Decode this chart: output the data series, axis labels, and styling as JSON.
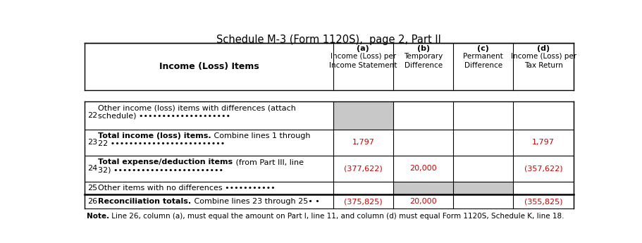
{
  "title": "Schedule M-3 (Form 1120S),  page 2, Part II",
  "title_fontsize": 10.5,
  "bg_color": "#ffffff",
  "border_color": "#000000",
  "gray_fill": "#c8c8c8",
  "red_color": "#cc0000",
  "black_color": "#000000",
  "col_header_labels": [
    "(a)",
    "(b)",
    "(c)",
    "(d)"
  ],
  "col_header_sub": [
    "Income (Loss) per\nIncome Statement",
    "Temporary\nDifference",
    "Permanent\nDifference",
    "Income (Loss) per\nTax Return"
  ],
  "row_header": "Income (Loss) Items",
  "rows": [
    {
      "num": "22",
      "label_bold": "",
      "label_normal": "Other income (loss) items with differences (attach\nschedule) ••••••••••••••••••••",
      "values": [
        "",
        "",
        "",
        ""
      ],
      "gray_cols": [
        0
      ],
      "two_line": true
    },
    {
      "num": "23",
      "label_bold": "Total income (loss) items.",
      "label_normal": " Combine lines 1 through\n22 •••••••••••••••••••••••••",
      "values": [
        "1,797",
        "",
        "",
        "1,797"
      ],
      "gray_cols": [],
      "two_line": true
    },
    {
      "num": "24",
      "label_bold": "Total expense/deduction items",
      "label_normal": " (from Part III, line\n32) ••••••••••••••••••••••••",
      "values": [
        "(377,622)",
        "20,000",
        "",
        "(357,622)"
      ],
      "gray_cols": [],
      "two_line": true
    },
    {
      "num": "25",
      "label_bold": "",
      "label_normal": "Other items with no differences •••••••••••",
      "values": [
        "",
        "",
        "",
        ""
      ],
      "gray_cols": [
        1,
        2
      ],
      "two_line": false
    },
    {
      "num": "26",
      "label_bold": "Reconciliation totals.",
      "label_normal": " Combine lines 23 through 25• •",
      "values": [
        "(375,825)",
        "20,000",
        "",
        "(355,825)"
      ],
      "gray_cols": [],
      "two_line": false
    }
  ],
  "note_bold": "Note.",
  "note_normal": " Line 26, column (a), must equal the amount on Part I, line 11, and column (d) must equal Form 1120S, Schedule K, line 18."
}
